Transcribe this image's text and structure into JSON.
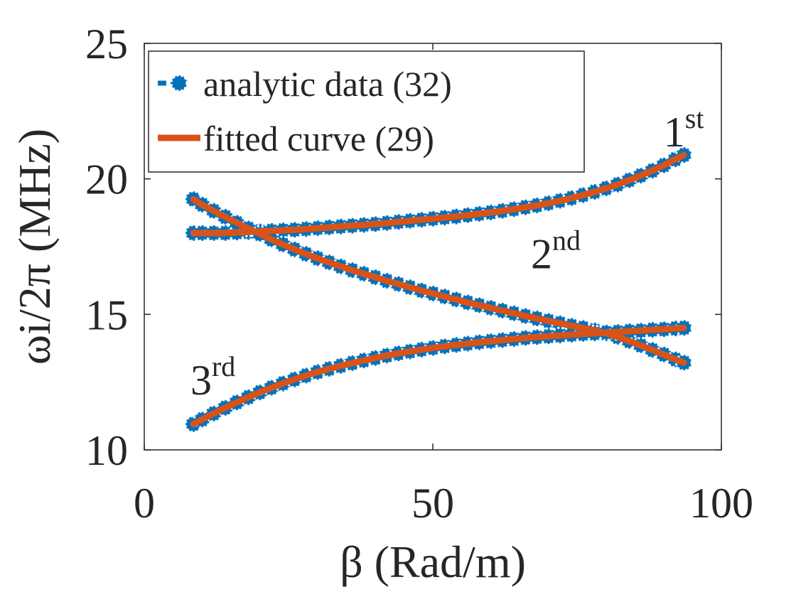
{
  "chart_data": {
    "type": "line",
    "title": "",
    "xlabel": "β (Rad/m)",
    "ylabel": "ωi/2π (MHz)",
    "xlim": [
      0,
      100
    ],
    "ylim": [
      10,
      25
    ],
    "xticks": [
      0,
      50,
      100
    ],
    "yticks": [
      10,
      15,
      20,
      25
    ],
    "grid": false,
    "legend_position": "top-left",
    "legend": [
      {
        "label": "analytic data (32)",
        "style": "markers",
        "color": "#0072BD"
      },
      {
        "label": "fitted curve (29)",
        "style": "line",
        "color": "#D95319"
      }
    ],
    "series": [
      {
        "name": "1st",
        "x": [
          8.5,
          10,
          12,
          14,
          16,
          18,
          20,
          22,
          24,
          26,
          28,
          30,
          32,
          34,
          36,
          38,
          40,
          42,
          44,
          46,
          48,
          50,
          52,
          54,
          56,
          58,
          60,
          62,
          64,
          66,
          68,
          70,
          72,
          74,
          76,
          78,
          80,
          82,
          84,
          86,
          88,
          90,
          92,
          93.5
        ],
        "y": [
          18.0,
          18.0,
          18.0,
          18.0,
          18.02,
          18.04,
          18.06,
          18.08,
          18.1,
          18.12,
          18.15,
          18.18,
          18.21,
          18.24,
          18.27,
          18.3,
          18.33,
          18.37,
          18.41,
          18.45,
          18.49,
          18.53,
          18.57,
          18.61,
          18.66,
          18.71,
          18.76,
          18.82,
          18.88,
          18.95,
          19.02,
          19.1,
          19.19,
          19.29,
          19.4,
          19.52,
          19.65,
          19.79,
          19.95,
          20.12,
          20.3,
          20.5,
          20.72,
          20.88
        ]
      },
      {
        "name": "2nd",
        "x": [
          8.5,
          10,
          12,
          14,
          16,
          18,
          20,
          22,
          24,
          26,
          28,
          30,
          32,
          34,
          36,
          38,
          40,
          42,
          44,
          46,
          48,
          50,
          52,
          54,
          56,
          58,
          60,
          62,
          64,
          66,
          68,
          70,
          72,
          74,
          76,
          78,
          80,
          82,
          84,
          86,
          88,
          90,
          92,
          93.5
        ],
        "y": [
          19.25,
          19.05,
          18.82,
          18.6,
          18.38,
          18.17,
          17.97,
          17.77,
          17.58,
          17.4,
          17.23,
          17.07,
          16.92,
          16.77,
          16.63,
          16.5,
          16.37,
          16.24,
          16.12,
          16.0,
          15.88,
          15.77,
          15.66,
          15.55,
          15.44,
          15.34,
          15.24,
          15.14,
          15.04,
          14.94,
          14.85,
          14.76,
          14.67,
          14.58,
          14.5,
          14.41,
          14.3,
          14.17,
          14.02,
          13.86,
          13.69,
          13.52,
          13.34,
          13.22
        ]
      },
      {
        "name": "3rd",
        "x": [
          8.5,
          10,
          12,
          14,
          16,
          18,
          20,
          22,
          24,
          26,
          28,
          30,
          32,
          34,
          36,
          38,
          40,
          42,
          44,
          46,
          48,
          50,
          52,
          54,
          56,
          58,
          60,
          62,
          64,
          66,
          68,
          70,
          72,
          74,
          76,
          78,
          80,
          82,
          84,
          86,
          88,
          90,
          92,
          93.5
        ],
        "y": [
          10.95,
          11.12,
          11.34,
          11.55,
          11.75,
          11.94,
          12.12,
          12.29,
          12.45,
          12.6,
          12.74,
          12.87,
          12.99,
          13.1,
          13.2,
          13.3,
          13.39,
          13.48,
          13.56,
          13.63,
          13.7,
          13.76,
          13.82,
          13.87,
          13.92,
          13.97,
          14.01,
          14.05,
          14.09,
          14.13,
          14.16,
          14.19,
          14.22,
          14.25,
          14.28,
          14.3,
          14.33,
          14.35,
          14.38,
          14.4,
          14.43,
          14.45,
          14.48,
          14.5
        ]
      }
    ],
    "annotations": [
      {
        "base": "1",
        "sup": "st",
        "x": 90,
        "y": 21.2
      },
      {
        "base": "2",
        "sup": "nd",
        "x": 67,
        "y": 16.7
      },
      {
        "base": "3",
        "sup": "rd",
        "x": 8,
        "y": 12.05
      }
    ]
  },
  "colors": {
    "marker": "#0072BD",
    "line": "#D95319",
    "axis": "#262626"
  }
}
